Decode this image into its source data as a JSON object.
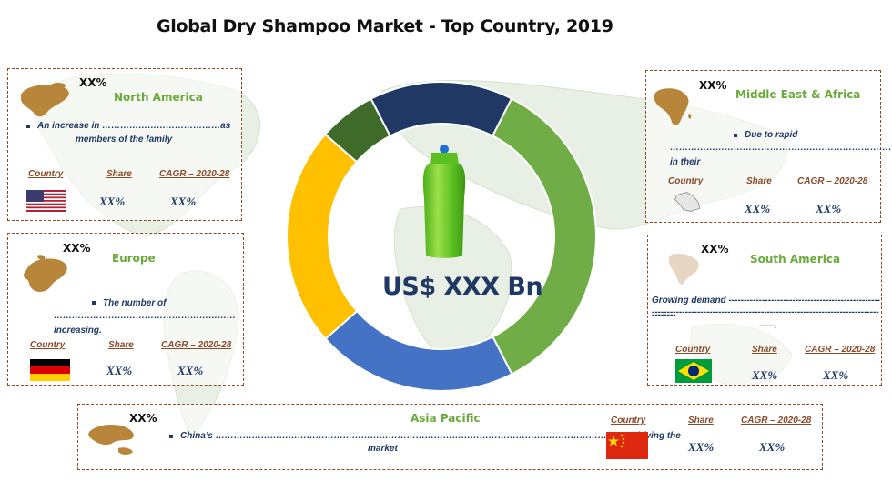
{
  "title": "Global Dry Shampoo Market - Top Country, 2019",
  "center_label": "US$ XXX Bn",
  "headers": {
    "country": "Country",
    "share": "Share",
    "cagr": "CAGR – 2020-28"
  },
  "regions": {
    "north_america": {
      "name": "North America",
      "pct": "XX%",
      "desc_line1": "An increase in …………………………………as",
      "desc_line2": "members of the family",
      "share": "XX%",
      "cagr": "XX%",
      "flag": "usa-flag"
    },
    "europe": {
      "name": "Europe",
      "pct": "XX%",
      "desc_line1": "The number of",
      "desc_line2": "……………………………………………………increasing.",
      "share": "XX%",
      "cagr": "XX%",
      "flag": "germany-flag"
    },
    "middle_east_africa": {
      "name": "Middle East & Africa",
      "pct": "XX%",
      "desc_line1": "Due to rapid",
      "desc_line2": "…………………………………………………………………… in their",
      "share": "XX%",
      "cagr": "XX%",
      "flag": "saudi-map-icon"
    },
    "south_america": {
      "name": "South America",
      "pct": "XX%",
      "desc_line1": "Growing demand ----------------------------------------------------------",
      "desc_line2": "------------------------------------------------------------------------------------",
      "desc_line3": "-----.",
      "share": "XX%",
      "cagr": "XX%",
      "flag": "brazil-flag"
    },
    "asia_pacific": {
      "name": "Asia Pacific",
      "pct": "XX%",
      "desc_line1": "China’s …………………………………………………………………………………………………………………………driving the",
      "desc_line2": "market",
      "share": "XX%",
      "cagr": "XX%",
      "flag": "china-flag"
    }
  },
  "donut": {
    "segments": [
      {
        "share": 0.35,
        "color": "#70ad47"
      },
      {
        "share": 0.21,
        "color": "#4472c4"
      },
      {
        "share": 0.23,
        "color": "#ffc000"
      },
      {
        "share": 0.06,
        "color": "#3f6b2a"
      },
      {
        "share": 0.15,
        "color": "#203864"
      }
    ]
  },
  "colors": {
    "accent_green": "#6aaa3a",
    "navy": "#1f3864",
    "border_brown": "#8a4a2a",
    "region_icon": "#b8863b"
  }
}
